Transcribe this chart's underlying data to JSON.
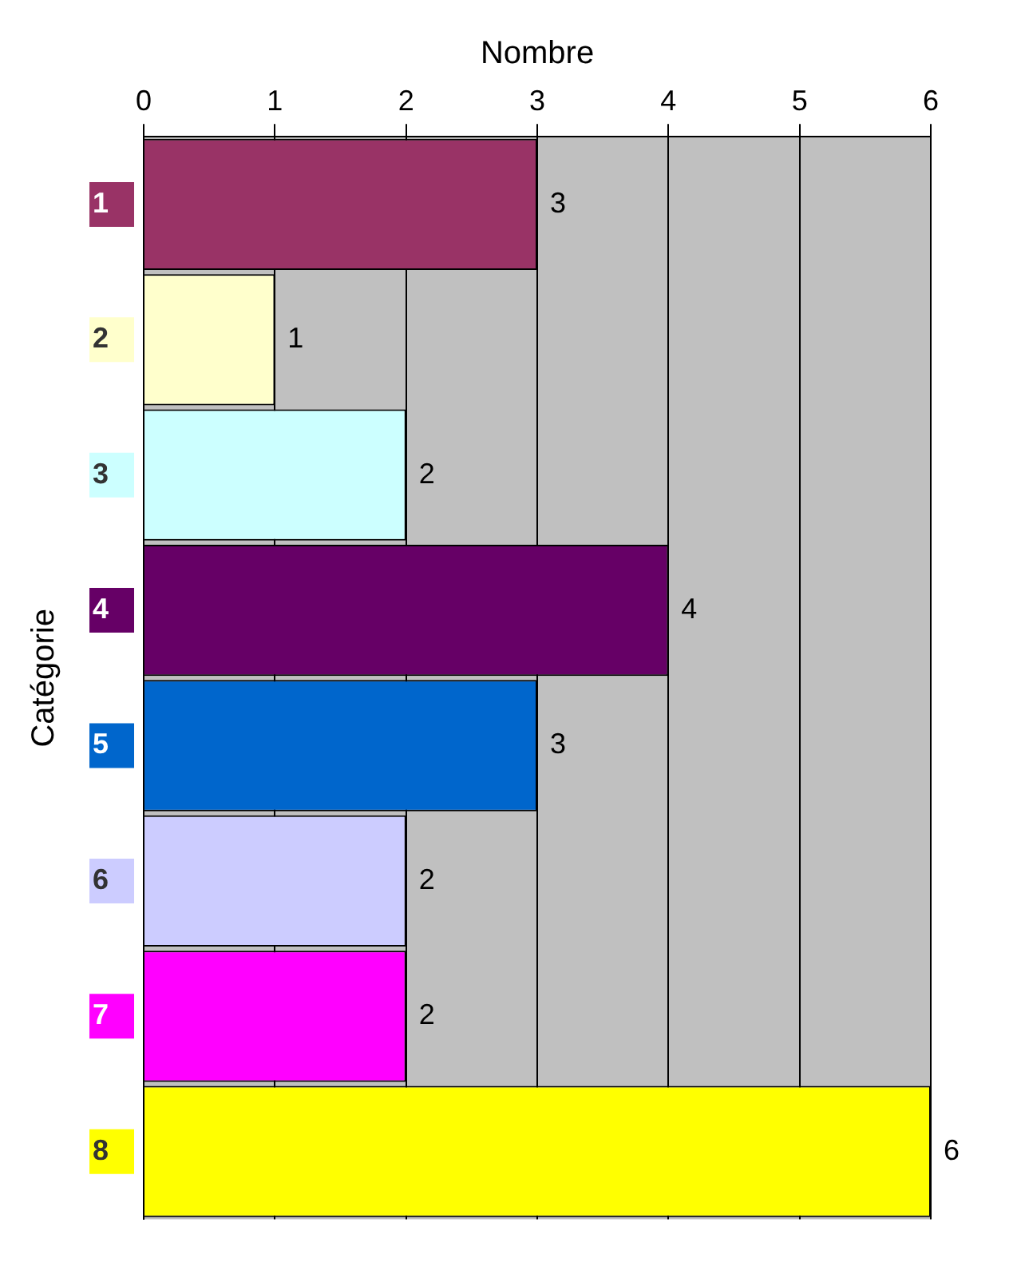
{
  "chart_data": {
    "type": "bar",
    "orientation": "horizontal",
    "xlabel": "Nombre",
    "ylabel": "Catégorie",
    "categories": [
      "1",
      "2",
      "3",
      "4",
      "5",
      "6",
      "7",
      "8"
    ],
    "values": [
      3,
      1,
      2,
      4,
      3,
      2,
      2,
      6
    ],
    "colors": [
      "#993366",
      "#ffffcc",
      "#ccffff",
      "#660066",
      "#0066cc",
      "#ccccff",
      "#ff00ff",
      "#ffff00"
    ],
    "xlim": [
      0,
      6
    ],
    "xticks": [
      0,
      1,
      2,
      3,
      4,
      5,
      6
    ],
    "grid": "x",
    "data_labels": true
  }
}
